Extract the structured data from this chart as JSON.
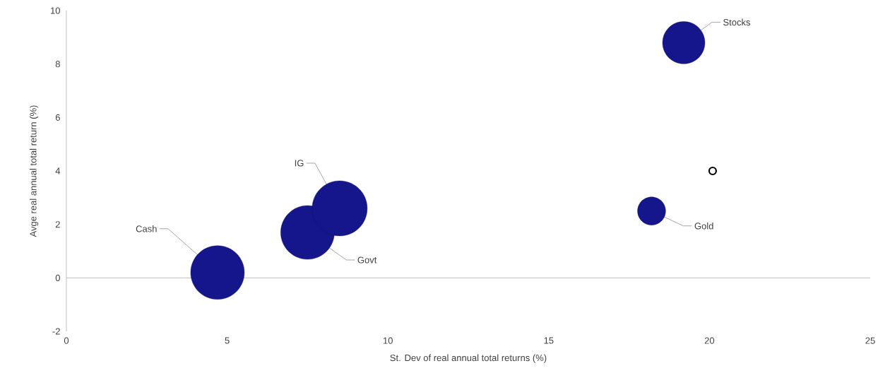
{
  "chart_data": {
    "type": "bubble",
    "xlabel": "St. Dev of real annual total returns (%)",
    "ylabel": "Avge real annual total return (%)",
    "xlim": [
      0,
      25
    ],
    "ylim": [
      -2,
      10
    ],
    "xticks": [
      0,
      5,
      10,
      15,
      20,
      25
    ],
    "yticks": [
      -2,
      0,
      2,
      4,
      6,
      8,
      10
    ],
    "series": [
      {
        "color": "#16168c",
        "x": [
          19.2,
          4.7,
          7.5,
          8.5,
          18.2
        ],
        "values": [
          8.8,
          0.2,
          1.7,
          2.6,
          2.5
        ],
        "sizes": [
          0.59,
          0.95,
          0.95,
          1,
          0.26
        ]
      },
      {
        "type": "scatter",
        "color": "#000000",
        "marker": "circle",
        "x": [
          20.1
        ],
        "values": [
          4.0
        ]
      }
    ],
    "annotations": [
      {
        "text": "Stocks",
        "x": 19.2,
        "y": 8.8
      },
      {
        "text": "Cash",
        "x": 4.7,
        "y": 0.2
      },
      {
        "text": "Govt",
        "x": 7.5,
        "y": 1.7
      },
      {
        "text": "IG",
        "x": 8.5,
        "y": 2.6
      },
      {
        "text": "Gold",
        "x": 18.2,
        "y": 2.5
      }
    ]
  }
}
